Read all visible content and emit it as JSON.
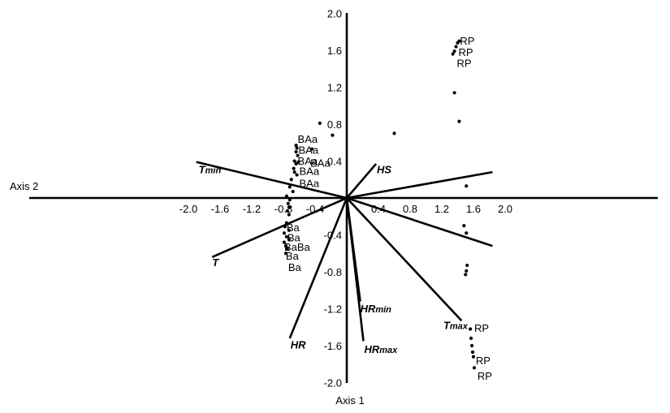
{
  "chart_data": {
    "type": "scatter",
    "title": "",
    "x_axis": {
      "label": "Axis 1",
      "range": [
        -2.0,
        2.0
      ],
      "ticks": [
        -2.0,
        -1.6,
        -1.2,
        -0.8,
        -0.4,
        0.4,
        0.8,
        1.2,
        1.6,
        2.0
      ],
      "tick_labels": [
        "-2.0",
        "-1.6",
        "-1.2",
        "-0.8",
        "-0.4",
        "0.4",
        "0.8",
        "1.2",
        "1.6",
        "2.0"
      ]
    },
    "y_axis": {
      "label": "Axis 2",
      "range": [
        -2.0,
        2.0
      ],
      "ticks": [
        2.0,
        1.6,
        1.2,
        0.8,
        0.4,
        -0.4,
        -0.8,
        -1.2,
        -1.6,
        -2.0
      ],
      "tick_labels": [
        "2.0",
        "1.6",
        "1.2",
        "0.8",
        "0.4",
        "-0.4",
        "-0.8",
        "-1.2",
        "-1.6",
        "-2.0"
      ]
    },
    "grid": false,
    "vectors": [
      {
        "name": "Tmin",
        "base": "T",
        "sub": "min",
        "x": -1.9,
        "y": 0.39,
        "label_x": -1.87,
        "label_y": 0.27
      },
      {
        "name": "T",
        "base": "T",
        "sub": "",
        "x": -1.7,
        "y": -0.64,
        "label_x": -1.7,
        "label_y": -0.74
      },
      {
        "name": "HS",
        "base": "HS",
        "sub": "",
        "x": 0.37,
        "y": 0.37,
        "label_x": 0.38,
        "label_y": 0.27
      },
      {
        "name": "HRmin",
        "base": "HR",
        "sub": "min",
        "x": 0.17,
        "y": -1.12,
        "label_x": 0.17,
        "label_y": -1.24
      },
      {
        "name": "HRmax",
        "base": "HR",
        "sub": "max",
        "x": 0.21,
        "y": -1.55,
        "label_x": 0.22,
        "label_y": -1.68
      },
      {
        "name": "HR",
        "base": "HR",
        "sub": "",
        "x": -0.72,
        "y": -1.52,
        "label_x": -0.71,
        "label_y": -1.63
      },
      {
        "name": "Tmax",
        "base": "T",
        "sub": "max",
        "x": 1.45,
        "y": -1.33,
        "label_x": 1.22,
        "label_y": -1.42
      }
    ],
    "axis_lines": [
      {
        "name": "right-upper-line",
        "x": 1.84,
        "y": 0.28
      },
      {
        "name": "right-lower-line",
        "x": 1.84,
        "y": -0.52
      }
    ],
    "points": [
      [
        1.4,
        1.68
      ],
      [
        1.42,
        1.7
      ],
      [
        1.38,
        1.64
      ],
      [
        1.36,
        1.59
      ],
      [
        1.34,
        1.56
      ],
      [
        1.36,
        1.14
      ],
      [
        1.42,
        0.83
      ],
      [
        -0.34,
        0.81
      ],
      [
        -0.18,
        0.68
      ],
      [
        0.6,
        0.7
      ],
      [
        -0.64,
        0.57
      ],
      [
        -0.63,
        0.54
      ],
      [
        -0.64,
        0.5
      ],
      [
        -0.62,
        0.46
      ],
      [
        -0.66,
        0.4
      ],
      [
        -0.64,
        0.37
      ],
      [
        -0.61,
        0.39
      ],
      [
        -0.67,
        0.32
      ],
      [
        -0.66,
        0.28
      ],
      [
        -0.63,
        0.25
      ],
      [
        -0.7,
        0.2
      ],
      [
        -0.72,
        0.12
      ],
      [
        -0.68,
        0.07
      ],
      [
        -0.76,
        0.02
      ],
      [
        -0.72,
        -0.02
      ],
      [
        -0.74,
        -0.06
      ],
      [
        -0.72,
        -0.1
      ],
      [
        -0.75,
        -0.14
      ],
      [
        -0.73,
        -0.18
      ],
      [
        -0.44,
        0.53
      ],
      [
        -0.76,
        -0.27
      ],
      [
        -0.78,
        -0.31
      ],
      [
        -0.73,
        -0.35
      ],
      [
        -0.79,
        -0.38
      ],
      [
        -0.76,
        -0.42
      ],
      [
        -0.73,
        -0.45
      ],
      [
        -0.79,
        -0.48
      ],
      [
        -0.77,
        -0.52
      ],
      [
        -0.75,
        -0.55
      ],
      [
        -0.77,
        -0.6
      ],
      [
        1.51,
        0.13
      ],
      [
        1.48,
        -0.3
      ],
      [
        1.51,
        -0.38
      ],
      [
        1.52,
        -0.73
      ],
      [
        1.51,
        -0.79
      ],
      [
        1.5,
        -0.83
      ],
      [
        1.56,
        -1.42
      ],
      [
        1.57,
        -1.52
      ],
      [
        1.58,
        -1.6
      ],
      [
        1.59,
        -1.67
      ],
      [
        1.6,
        -1.72
      ],
      [
        1.61,
        -1.84
      ]
    ],
    "labels": [
      {
        "text": "RP",
        "x": 1.43,
        "y": 1.66
      },
      {
        "text": "RP",
        "x": 1.41,
        "y": 1.54
      },
      {
        "text": "RP",
        "x": 1.39,
        "y": 1.42
      },
      {
        "text": "BAa",
        "x": -0.62,
        "y": 0.6
      },
      {
        "text": "BAa",
        "x": -0.61,
        "y": 0.48
      },
      {
        "text": "BAa",
        "x": -0.62,
        "y": 0.36
      },
      {
        "text": "BAa",
        "x": -0.46,
        "y": 0.34
      },
      {
        "text": "BAa",
        "x": -0.6,
        "y": 0.25
      },
      {
        "text": "BAa",
        "x": -0.6,
        "y": 0.12
      },
      {
        "text": "Ba",
        "x": -0.76,
        "y": -0.36
      },
      {
        "text": "Ba",
        "x": -0.75,
        "y": -0.47
      },
      {
        "text": "BaBa",
        "x": -0.79,
        "y": -0.57
      },
      {
        "text": "Ba",
        "x": -0.77,
        "y": -0.67
      },
      {
        "text": "Ba",
        "x": -0.74,
        "y": -0.79
      },
      {
        "text": "RP",
        "x": 1.61,
        "y": -1.45
      },
      {
        "text": "RP",
        "x": 1.63,
        "y": -1.8
      },
      {
        "text": "RP",
        "x": 1.65,
        "y": -1.97
      }
    ]
  }
}
